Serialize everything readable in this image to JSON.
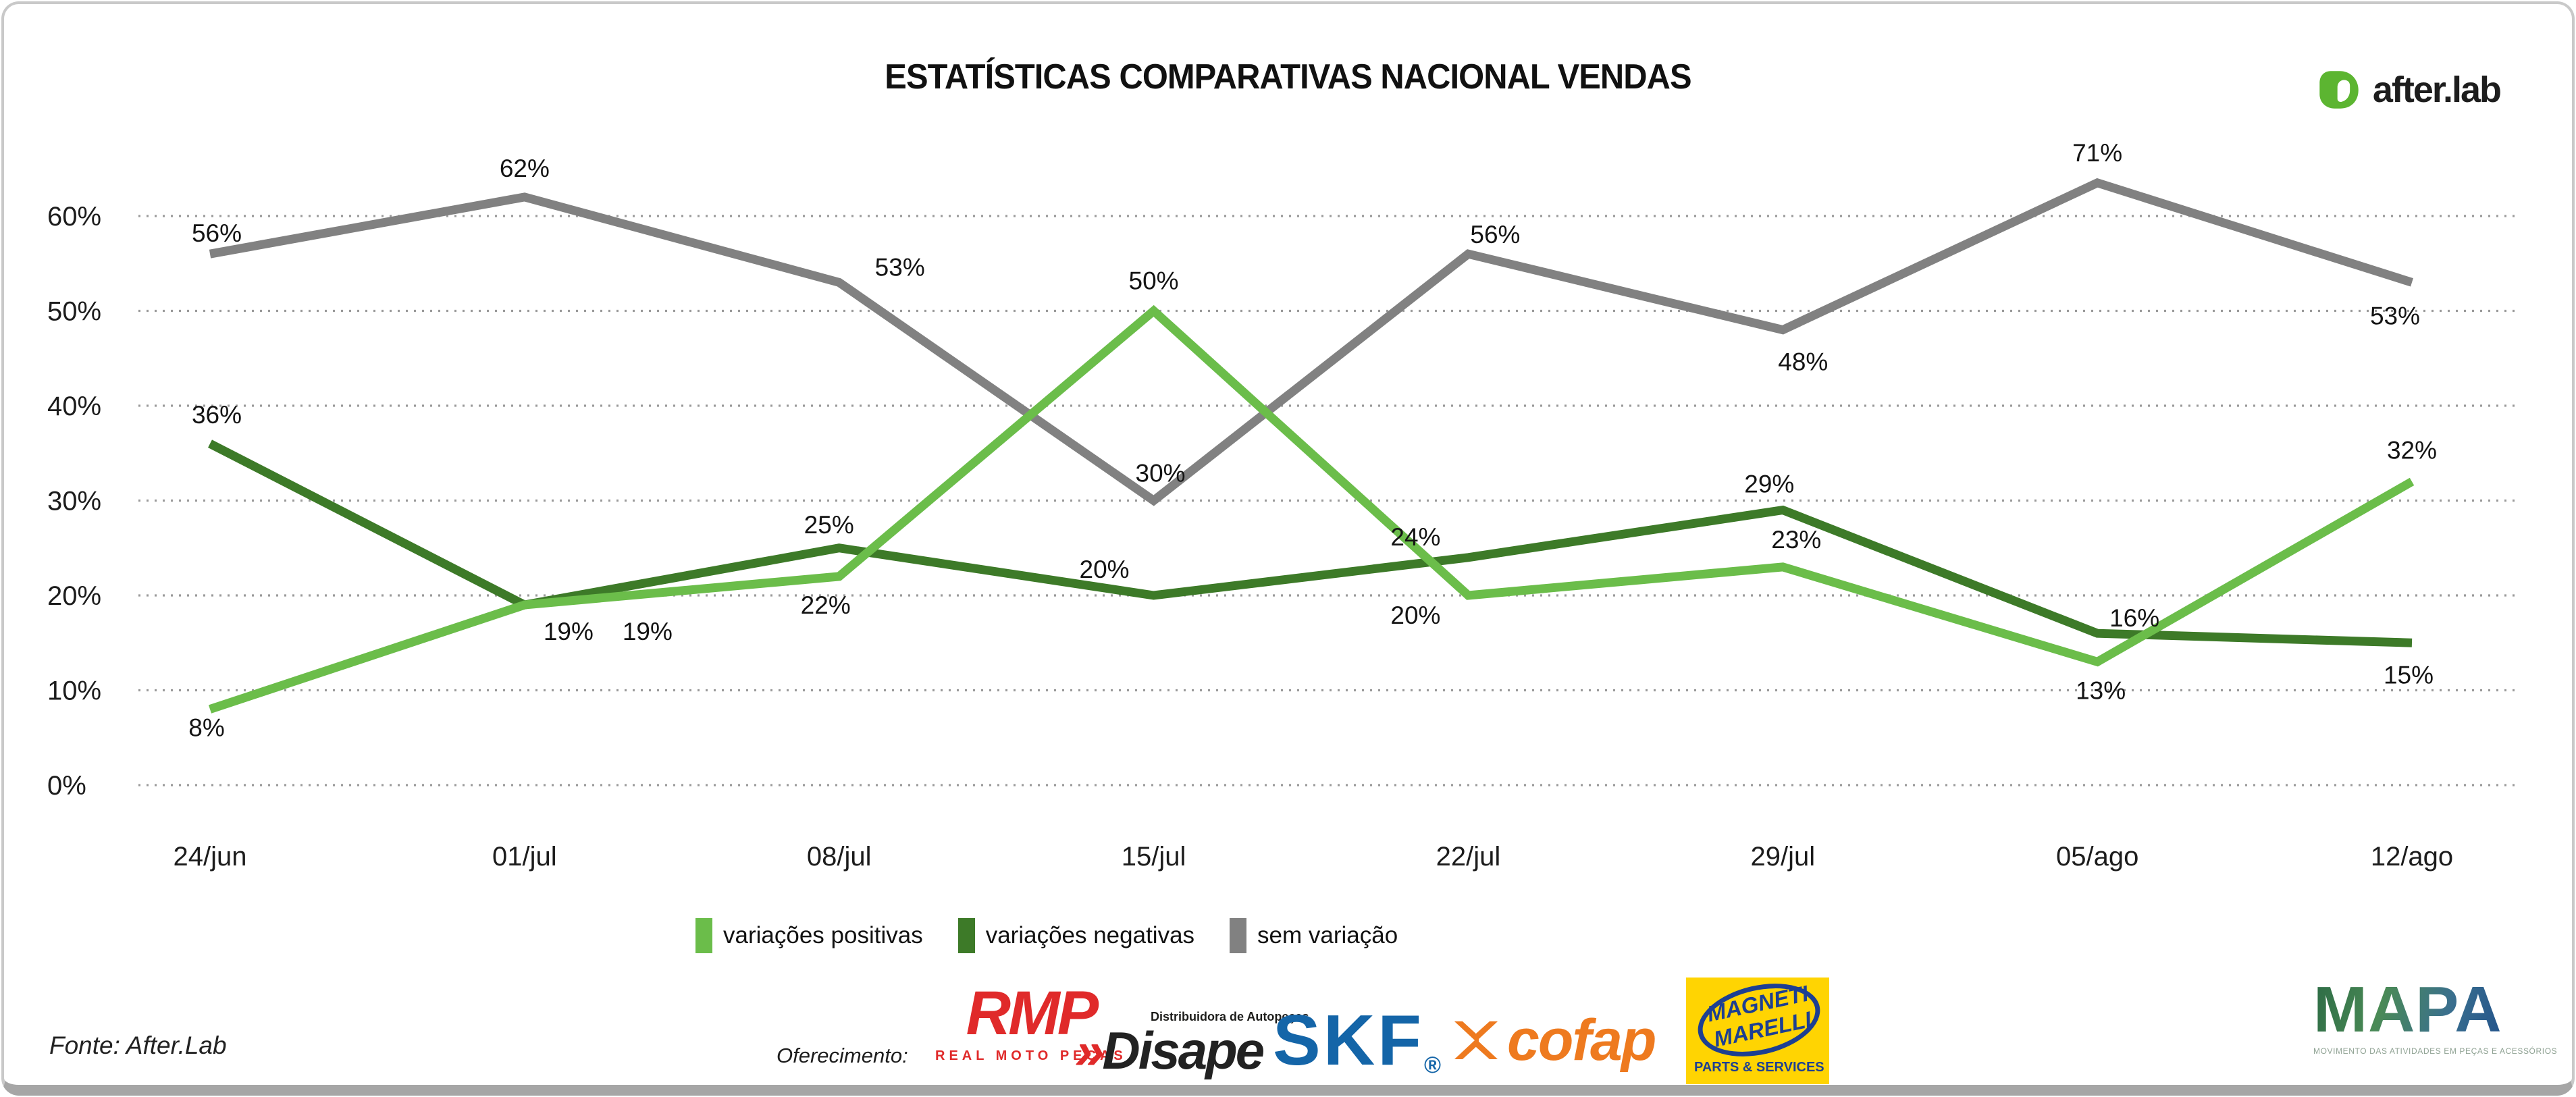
{
  "title": "ESTATÍSTICAS COMPARATIVAS NACIONAL VENDAS",
  "brand": {
    "name": "after.lab"
  },
  "chart_data": {
    "type": "line",
    "categories": [
      "24/jun",
      "01/jul",
      "08/jul",
      "15/jul",
      "22/jul",
      "29/jul",
      "05/ago",
      "12/ago"
    ],
    "series": [
      {
        "name": "variações positivas",
        "color": "#6bbd4a",
        "values": [
          8,
          19,
          22,
          50,
          20,
          23,
          13,
          32
        ]
      },
      {
        "name": "variações negativas",
        "color": "#3d7a28",
        "values": [
          36,
          19,
          25,
          20,
          24,
          29,
          16,
          15
        ]
      },
      {
        "name": "sem variação",
        "color": "#818181",
        "values": [
          56,
          62,
          53,
          30,
          56,
          48,
          71,
          53
        ]
      }
    ],
    "title": "ESTATÍSTICAS COMPARATIVAS NACIONAL VENDAS",
    "xlabel": "",
    "ylabel": "",
    "ylim": [
      0,
      60
    ],
    "yticks": [
      "0%",
      "10%",
      "20%",
      "30%",
      "40%",
      "50%",
      "60%"
    ],
    "grid": "horizontal dotted",
    "legend_position": "bottom",
    "data_label_format": "{value}%"
  },
  "footer": {
    "source": "Fonte: After.Lab",
    "sponsor_label": "Oferecimento:",
    "sponsors": [
      {
        "name": "RMP",
        "subtitle": "REAL MOTO PEÇAS"
      },
      {
        "name": "Disape",
        "prefix": "»",
        "tagline": "Distribuidora de Autopeças"
      },
      {
        "name": "SKF",
        "registered": "®"
      },
      {
        "name": "cofap"
      },
      {
        "name": "MAGNETI MARELLI",
        "line1": "MAGNETI",
        "line2": "MARELLI",
        "subtitle": "PARTS & SERVICES"
      }
    ],
    "mapa": {
      "name": "MAPA",
      "subtitle": "MOVIMENTO DAS ATIVIDADES EM PEÇAS E ACESSÓRIOS"
    }
  }
}
